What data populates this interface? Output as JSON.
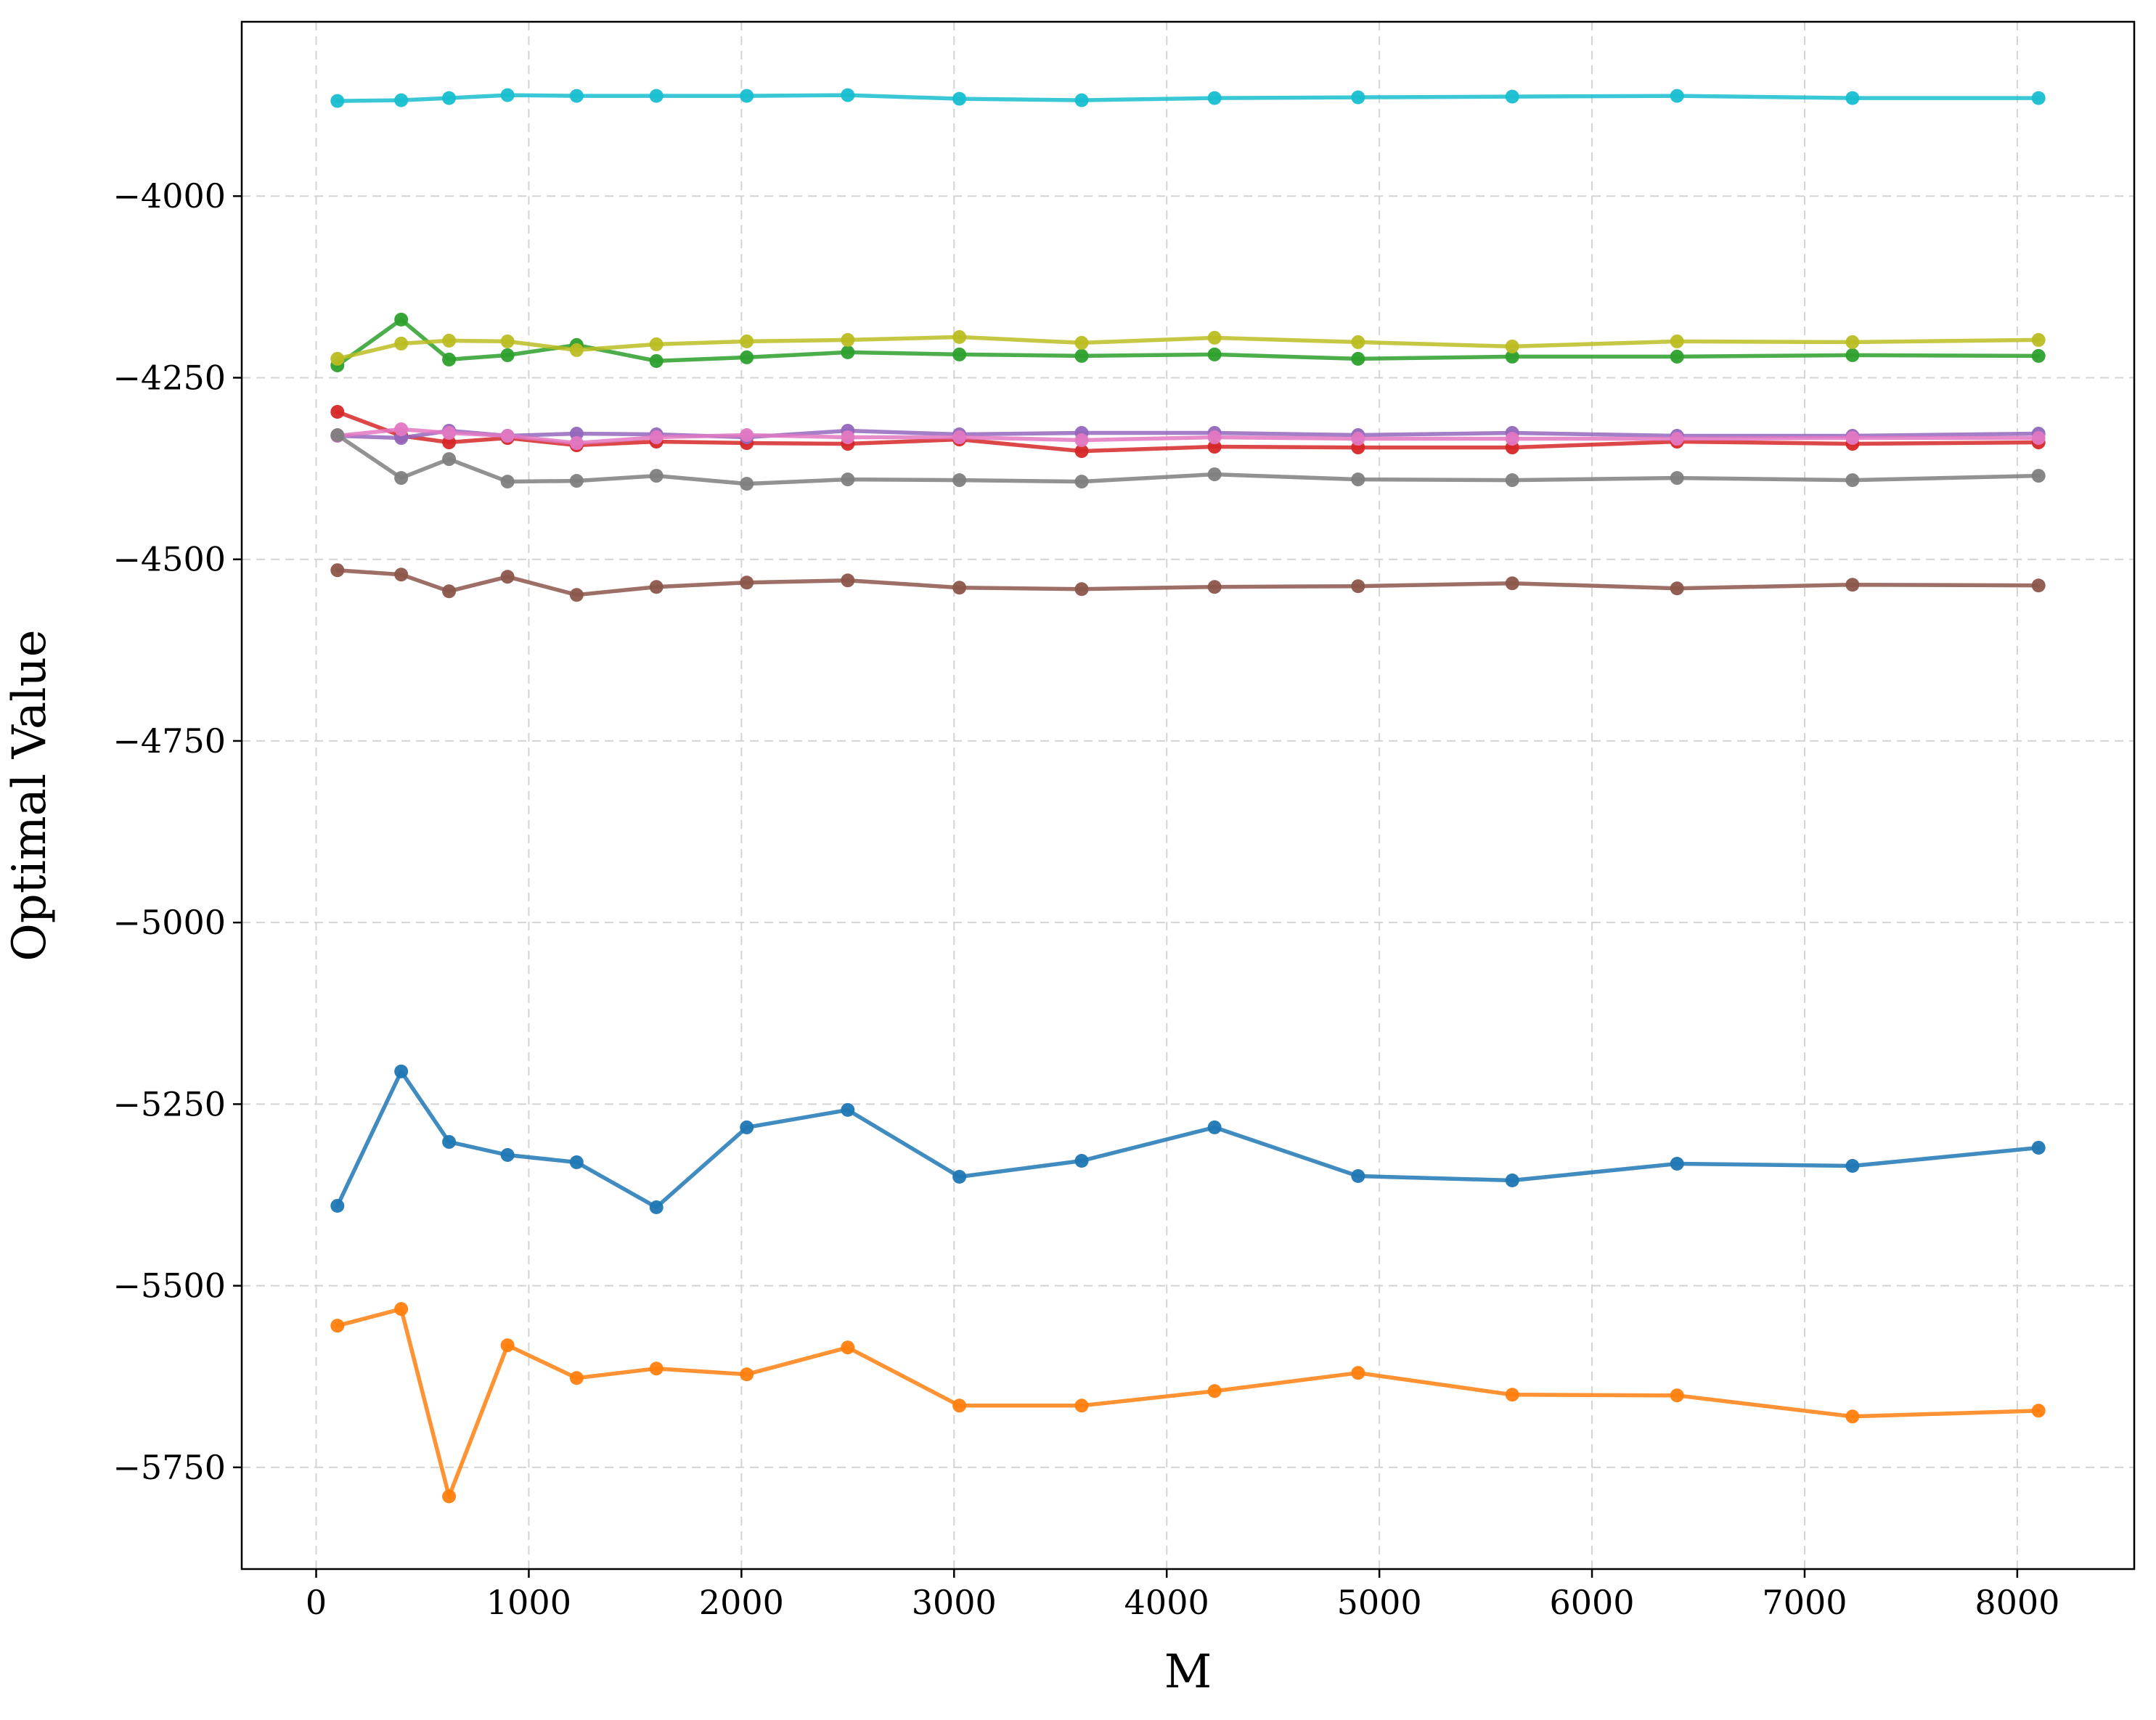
{
  "chart_data": {
    "type": "line",
    "title": "",
    "xlabel": "M",
    "ylabel": "Optimal Value",
    "xlim": [
      -350,
      8550
    ],
    "ylim": [
      -5890,
      -3760
    ],
    "xticks": [
      0,
      1000,
      2000,
      3000,
      4000,
      5000,
      6000,
      7000,
      8000
    ],
    "yticks": [
      -4000,
      -4250,
      -4500,
      -4750,
      -5000,
      -5250,
      -5500,
      -5750
    ],
    "grid": true,
    "legend": "none",
    "x": [
      100,
      400,
      625,
      900,
      1225,
      1600,
      2025,
      2500,
      3025,
      3600,
      4225,
      4900,
      5625,
      6400,
      7225,
      8100
    ],
    "series": [
      {
        "color": "#1f77b4",
        "values": [
          -5390,
          -5205,
          -5302,
          -5320,
          -5330,
          -5392,
          -5282,
          -5258,
          -5350,
          -5328,
          -5282,
          -5349,
          -5355,
          -5332,
          -5335,
          -5310
        ]
      },
      {
        "color": "#ff7f0e",
        "values": [
          -5555,
          -5532,
          -5790,
          -5582,
          -5627,
          -5614,
          -5622,
          -5585,
          -5665,
          -5665,
          -5645,
          -5620,
          -5650,
          -5651,
          -5680,
          -5672
        ]
      },
      {
        "color": "#2ca02c",
        "values": [
          -4233,
          -4170,
          -4225,
          -4219,
          -4205,
          -4227,
          -4222,
          -4215,
          -4218,
          -4220,
          -4218,
          -4224,
          -4221,
          -4221,
          -4219,
          -4220
        ]
      },
      {
        "color": "#d62728",
        "values": [
          -4297,
          -4330,
          -4339,
          -4333,
          -4343,
          -4338,
          -4340,
          -4341,
          -4335,
          -4351,
          -4345,
          -4346,
          -4346,
          -4338,
          -4341,
          -4339
        ]
      },
      {
        "color": "#9467bd",
        "values": [
          -4330,
          -4333,
          -4323,
          -4330,
          -4327,
          -4328,
          -4332,
          -4323,
          -4328,
          -4326,
          -4326,
          -4329,
          -4326,
          -4330,
          -4330,
          -4327
        ]
      },
      {
        "color": "#8c564b",
        "values": [
          -4515,
          -4521,
          -4544,
          -4524,
          -4549,
          -4538,
          -4532,
          -4529,
          -4539,
          -4541,
          -4538,
          -4537,
          -4533,
          -4540,
          -4535,
          -4536
        ]
      },
      {
        "color": "#e377c2",
        "values": [
          -4330,
          -4321,
          -4326,
          -4330,
          -4340,
          -4332,
          -4329,
          -4332,
          -4332,
          -4336,
          -4332,
          -4334,
          -4334,
          -4334,
          -4333,
          -4333
        ]
      },
      {
        "color": "#7f7f7f",
        "values": [
          -4329,
          -4388,
          -4362,
          -4393,
          -4392,
          -4385,
          -4396,
          -4390,
          -4391,
          -4393,
          -4383,
          -4390,
          -4391,
          -4388,
          -4391,
          -4385
        ]
      },
      {
        "color": "#bcbd22",
        "values": [
          -4224,
          -4203,
          -4199,
          -4200,
          -4212,
          -4204,
          -4200,
          -4198,
          -4194,
          -4202,
          -4195,
          -4201,
          -4207,
          -4200,
          -4201,
          -4198
        ]
      },
      {
        "color": "#17becf",
        "values": [
          -3869,
          -3868,
          -3865,
          -3861,
          -3862,
          -3862,
          -3862,
          -3861,
          -3866,
          -3868,
          -3865,
          -3864,
          -3863,
          -3862,
          -3865,
          -3865
        ]
      }
    ]
  }
}
